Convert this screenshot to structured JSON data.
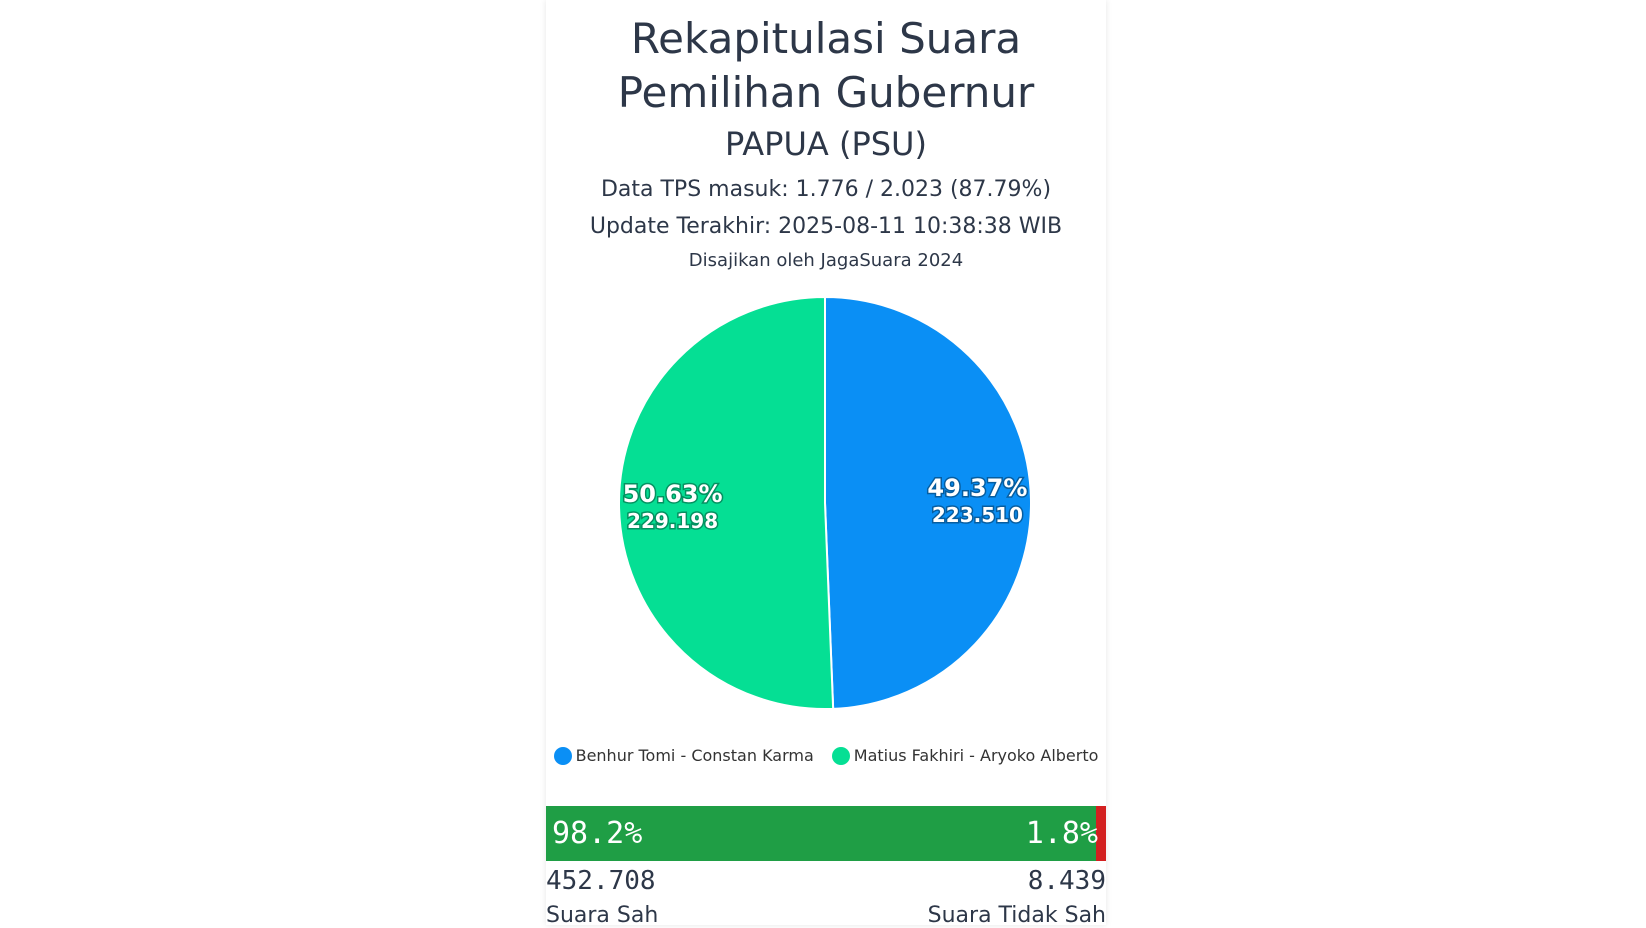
{
  "header": {
    "title_line1": "Rekapitulasi Suara",
    "title_line2": "Pemilihan Gubernur",
    "region": "PAPUA (PSU)",
    "tps_info": "Data TPS masuk: 1.776 / 2.023 (87.79%)",
    "last_update": "Update Terakhir: 2025-08-11 10:38:38 WIB",
    "source": "Disajikan oleh JagaSuara 2024"
  },
  "chart_data": {
    "type": "pie",
    "slices": [
      {
        "name": "Benhur Tomi - Constan Karma",
        "percent": 49.37,
        "value": 223510,
        "pct_label": "49.37%",
        "value_label": "223.510",
        "color": "#0a8ff5"
      },
      {
        "name": "Matius Fakhiri - Aryoko Alberto",
        "percent": 50.63,
        "value": 229198,
        "pct_label": "50.63%",
        "value_label": "229.198",
        "color": "#05df94"
      }
    ],
    "legend_position": "bottom"
  },
  "votes": {
    "sah_percent": 98.2,
    "sah_percent_label": "98.2%",
    "tidak_sah_percent_label": "1.8%",
    "sah_count": "452.708",
    "tidak_sah_count": "8.439",
    "sah_label": "Suara Sah",
    "tidak_sah_label": "Suara Tidak Sah",
    "sah_color": "#1f9e45",
    "tidak_sah_color": "#d32020"
  }
}
